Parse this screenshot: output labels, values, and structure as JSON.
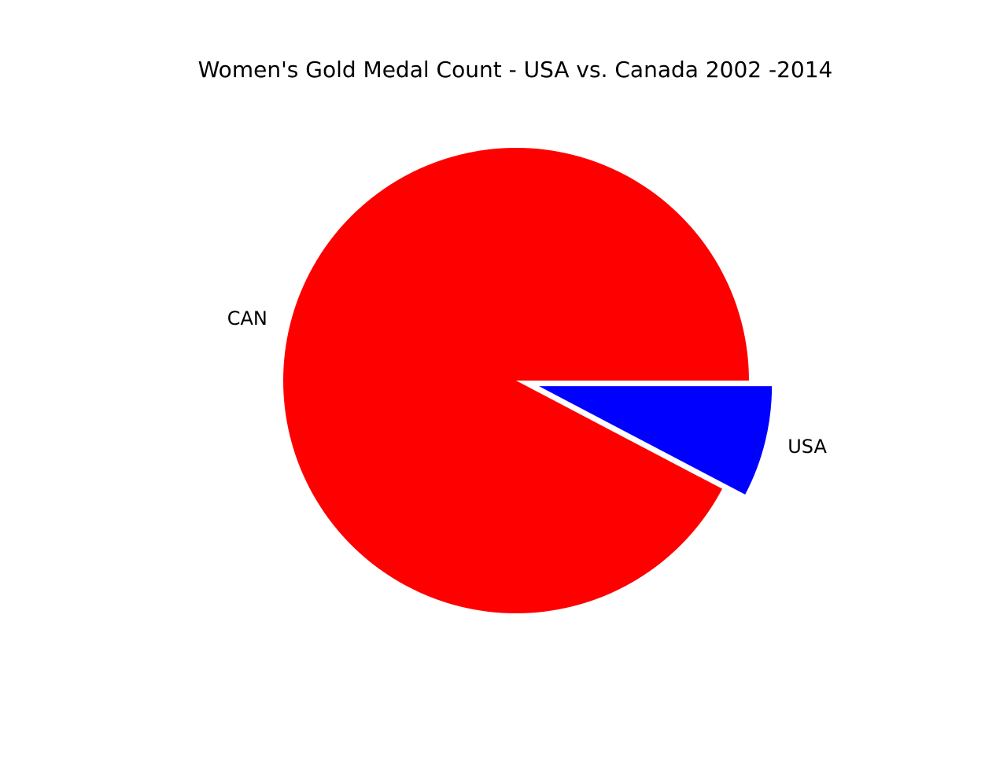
{
  "chart_data": {
    "type": "pie",
    "title": "Women's Gold Medal Count - USA vs. Canada 2002 -2014",
    "slices": [
      {
        "label": "USA",
        "value": 7.7,
        "color": "#0000ff",
        "exploded": true
      },
      {
        "label": "CAN",
        "value": 92.3,
        "color": "#ff0000",
        "exploded": false
      }
    ],
    "start_angle_deg": 0,
    "direction": "clockwise",
    "legend": "none"
  }
}
